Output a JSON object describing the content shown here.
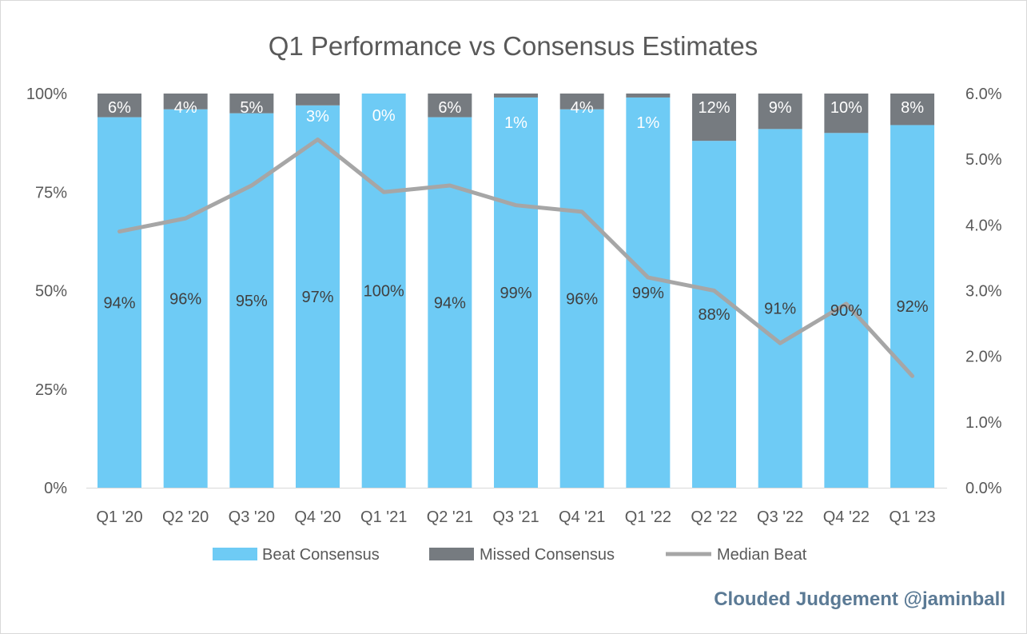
{
  "chart_data": {
    "type": "bar",
    "stacked": true,
    "title": "Q1 Performance vs Consensus Estimates",
    "categories": [
      "Q1 '20",
      "Q2 '20",
      "Q3 '20",
      "Q4 '20",
      "Q1 '21",
      "Q2 '21",
      "Q3 '21",
      "Q4 '21",
      "Q1 '22",
      "Q2 '22",
      "Q3 '22",
      "Q4 '22",
      "Q1 '23"
    ],
    "series": [
      {
        "name": "Beat Consensus",
        "type": "bar",
        "axis": "left",
        "color": "#6ecbf5",
        "values": [
          94,
          96,
          95,
          97,
          100,
          94,
          99,
          96,
          99,
          88,
          91,
          90,
          92
        ],
        "labels": [
          "94%",
          "96%",
          "95%",
          "97%",
          "100%",
          "94%",
          "99%",
          "96%",
          "99%",
          "88%",
          "91%",
          "90%",
          "92%"
        ]
      },
      {
        "name": "Missed Consensus",
        "type": "bar",
        "axis": "left",
        "color": "#767b80",
        "values": [
          6,
          4,
          5,
          3,
          0,
          6,
          1,
          4,
          1,
          12,
          9,
          10,
          8
        ],
        "labels": [
          "6%",
          "4%",
          "5%",
          "3%",
          "0%",
          "6%",
          "1%",
          "4%",
          "1%",
          "12%",
          "9%",
          "10%",
          "8%"
        ]
      },
      {
        "name": "Median Beat",
        "type": "line",
        "axis": "right",
        "color": "#a6a6a6",
        "values": [
          3.9,
          4.1,
          4.6,
          5.3,
          4.5,
          4.6,
          4.3,
          4.2,
          3.2,
          3.0,
          2.2,
          2.8,
          1.7
        ]
      }
    ],
    "y_left": {
      "ylim": [
        0,
        100
      ],
      "ticks": [
        "0%",
        "25%",
        "50%",
        "75%",
        "100%"
      ],
      "tick_values": [
        0,
        25,
        50,
        75,
        100
      ]
    },
    "y_right": {
      "ylim": [
        0,
        6
      ],
      "ticks": [
        "0.0%",
        "1.0%",
        "2.0%",
        "3.0%",
        "4.0%",
        "5.0%",
        "6.0%"
      ],
      "tick_values": [
        0,
        1,
        2,
        3,
        4,
        5,
        6
      ]
    },
    "legend": "bottom",
    "grid": false
  },
  "credit": "Clouded Judgement @jaminball"
}
